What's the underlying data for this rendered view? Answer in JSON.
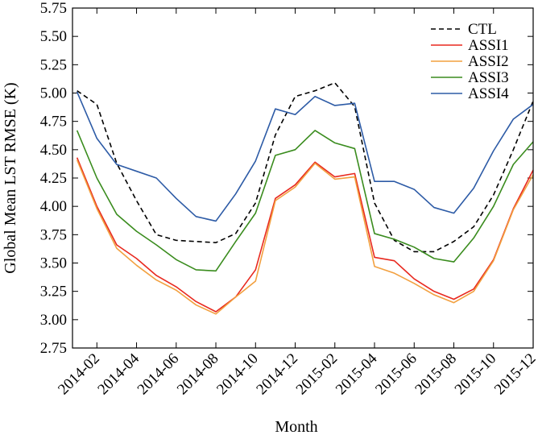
{
  "chart_data": {
    "type": "line",
    "xlabel": "Month",
    "ylabel": "Global Mean LST RMSE (K)",
    "ylim": [
      2.75,
      5.75
    ],
    "yticks": [
      "2.75",
      "3.00",
      "3.25",
      "3.50",
      "3.75",
      "4.00",
      "4.25",
      "4.50",
      "4.75",
      "5.00",
      "5.25",
      "5.50",
      "5.75"
    ],
    "xticks": [
      "2014-02",
      "2014-04",
      "2014-06",
      "2014-08",
      "2014-10",
      "2014-12",
      "2015-02",
      "2015-04",
      "2015-06",
      "2015-08",
      "2015-10",
      "2015-12"
    ],
    "x": [
      "2014-01",
      "2014-02",
      "2014-03",
      "2014-04",
      "2014-05",
      "2014-06",
      "2014-07",
      "2014-08",
      "2014-09",
      "2014-10",
      "2014-11",
      "2014-12",
      "2015-01",
      "2015-02",
      "2015-03",
      "2015-04",
      "2015-05",
      "2015-06",
      "2015-07",
      "2015-08",
      "2015-09",
      "2015-10",
      "2015-11",
      "2015-12"
    ],
    "legend_position": "top-right",
    "grid": false,
    "series": [
      {
        "name": "CTL",
        "color": "#000000",
        "dash": "dashed",
        "values": [
          5.02,
          4.9,
          4.38,
          4.05,
          3.75,
          3.7,
          3.69,
          3.68,
          3.76,
          4.03,
          4.63,
          4.97,
          5.02,
          5.09,
          4.88,
          4.03,
          3.7,
          3.6,
          3.6,
          3.69,
          3.82,
          4.1,
          4.5,
          4.93
        ]
      },
      {
        "name": "ASSI1",
        "color": "#e8291f",
        "dash": "solid",
        "values": [
          4.43,
          4.0,
          3.66,
          3.54,
          3.39,
          3.29,
          3.16,
          3.07,
          3.2,
          3.44,
          4.07,
          4.19,
          4.39,
          4.26,
          4.29,
          3.55,
          3.52,
          3.36,
          3.25,
          3.18,
          3.27,
          3.53,
          3.98,
          4.32
        ]
      },
      {
        "name": "ASSI2",
        "color": "#f2a03f",
        "dash": "solid",
        "values": [
          4.41,
          3.98,
          3.63,
          3.48,
          3.35,
          3.26,
          3.13,
          3.05,
          3.2,
          3.34,
          4.05,
          4.17,
          4.38,
          4.24,
          4.26,
          3.47,
          3.41,
          3.32,
          3.22,
          3.15,
          3.25,
          3.52,
          3.97,
          4.28
        ]
      },
      {
        "name": "ASSI3",
        "color": "#3a8c1e",
        "dash": "solid",
        "values": [
          4.67,
          4.25,
          3.93,
          3.78,
          3.66,
          3.53,
          3.44,
          3.43,
          3.69,
          3.94,
          4.45,
          4.5,
          4.67,
          4.56,
          4.51,
          3.76,
          3.71,
          3.64,
          3.54,
          3.51,
          3.72,
          4.0,
          4.37,
          4.57
        ]
      },
      {
        "name": "ASSI4",
        "color": "#2d5ba6",
        "dash": "solid",
        "values": [
          5.01,
          4.6,
          4.37,
          4.31,
          4.25,
          4.07,
          3.91,
          3.87,
          4.11,
          4.4,
          4.86,
          4.81,
          4.97,
          4.89,
          4.91,
          4.22,
          4.22,
          4.15,
          3.99,
          3.94,
          4.16,
          4.49,
          4.77,
          4.9
        ]
      }
    ]
  }
}
